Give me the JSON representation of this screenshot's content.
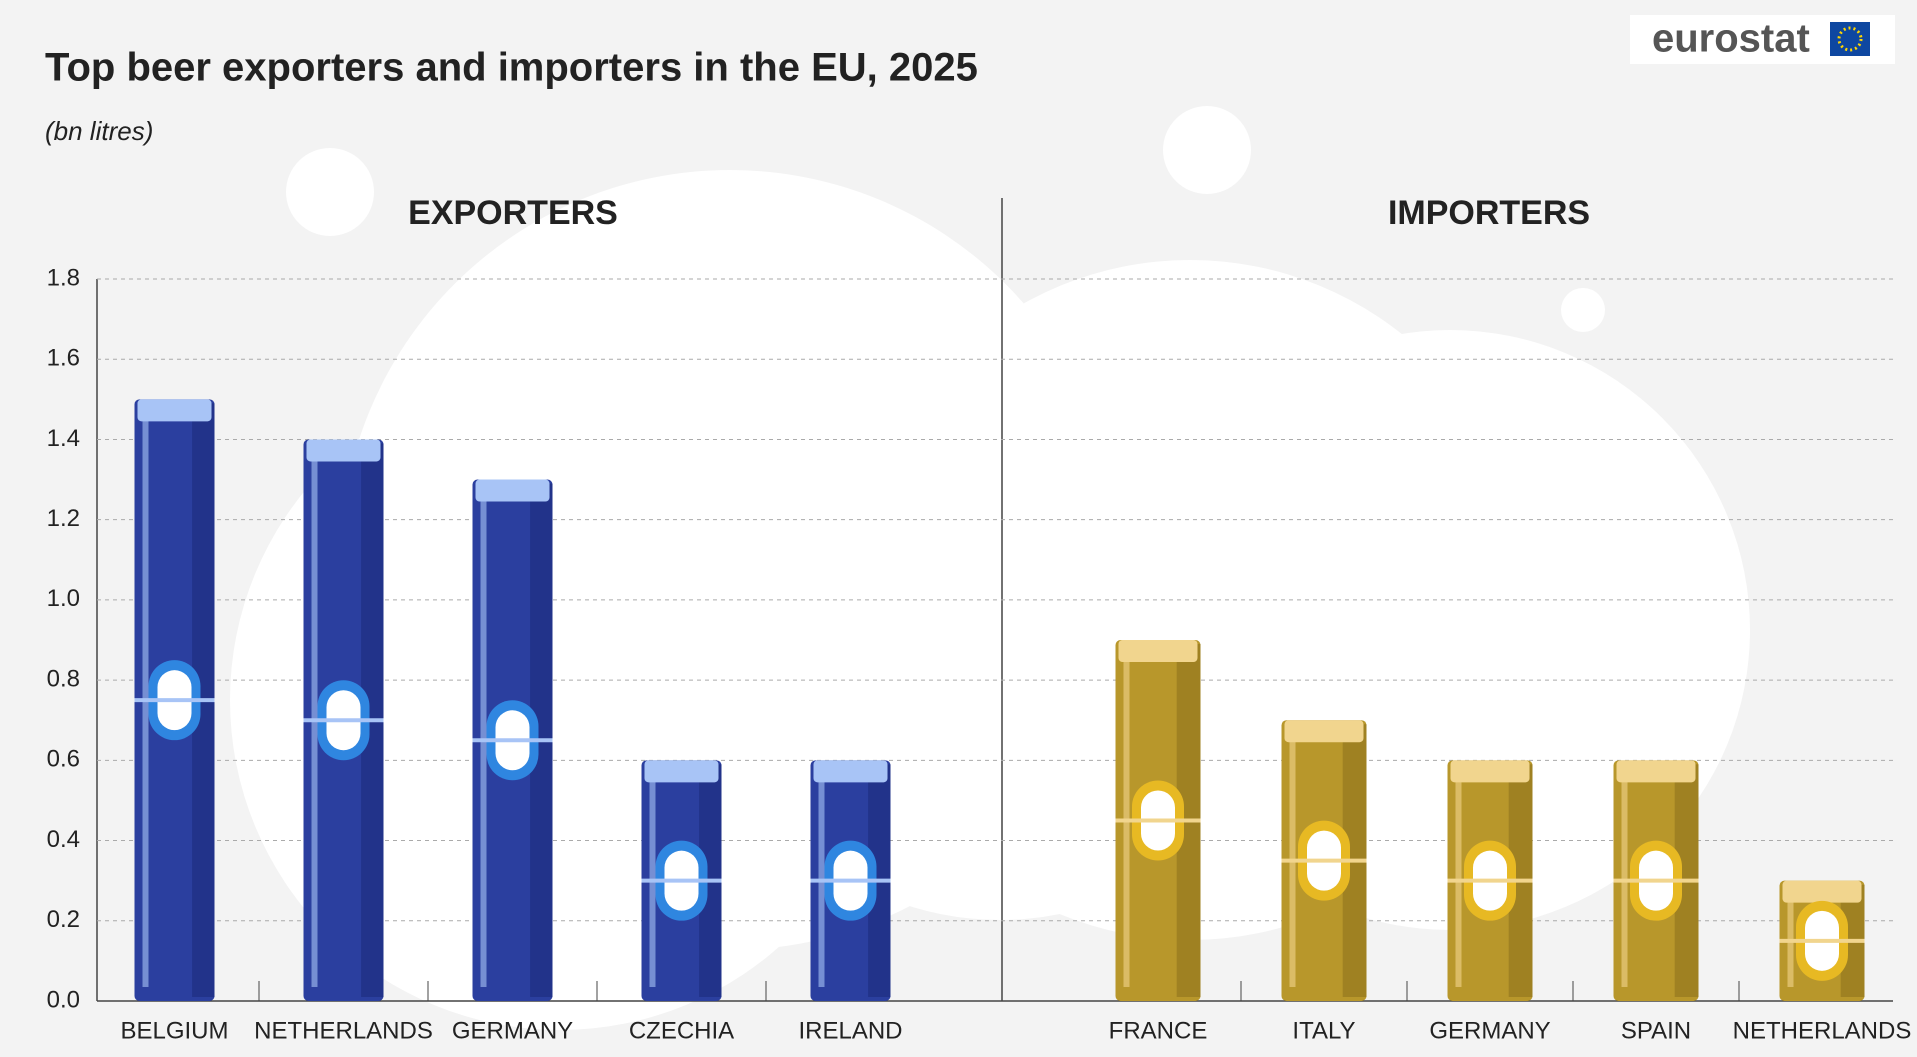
{
  "title": "Top beer exporters and importers in the EU, 2025",
  "subtitle": "(bn litres)",
  "logo": "eurostat",
  "chart_data": [
    {
      "type": "bar",
      "title": "EXPORTERS",
      "categories": [
        "BELGIUM",
        "NETHERLANDS",
        "GERMANY",
        "CZECHIA",
        "IRELAND"
      ],
      "values": [
        1.5,
        1.4,
        1.3,
        0.6,
        0.6
      ],
      "color": "#2b3f9f",
      "ylim": [
        0,
        1.8
      ],
      "yticks": [
        {
          "value": 0,
          "label": "0.0"
        },
        0.2,
        0.4,
        0.6,
        0.8,
        {
          "value": 1,
          "label": "1.0"
        },
        1.2,
        1.4,
        1.6,
        1.8
      ],
      "grid": true
    },
    {
      "type": "bar",
      "title": "IMPORTERS",
      "categories": [
        "FRANCE",
        "ITALY",
        "GERMANY",
        "SPAIN",
        "NETHERLANDS"
      ],
      "values": [
        0.9,
        0.7,
        0.6,
        0.6,
        0.3
      ],
      "color": "#b8972b",
      "ylim": [
        0,
        1.8
      ]
    }
  ]
}
